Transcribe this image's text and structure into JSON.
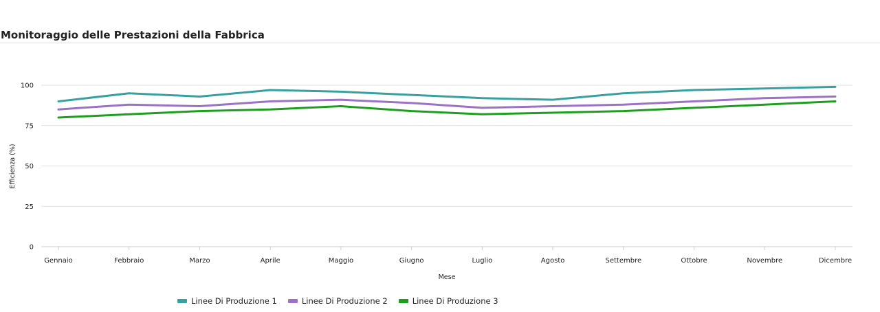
{
  "page": {
    "title": "Monitoraggio delle Prestazioni della Fabbrica"
  },
  "chart_data": {
    "type": "line",
    "title": "",
    "xlabel": "Mese",
    "ylabel": "Efficienza (%)",
    "categories": [
      "Gennaio",
      "Febbraio",
      "Marzo",
      "Aprile",
      "Maggio",
      "Giugno",
      "Luglio",
      "Agosto",
      "Settembre",
      "Ottobre",
      "Novembre",
      "Dicembre"
    ],
    "ylim": [
      0,
      110
    ],
    "yticks": [
      0,
      25,
      50,
      75,
      100
    ],
    "grid": true,
    "legend_position": "bottom",
    "series": [
      {
        "name": "Linee Di Produzione 1",
        "color": "#38a0a0",
        "values": [
          90,
          95,
          93,
          97,
          96,
          94,
          92,
          91,
          95,
          97,
          98,
          99
        ]
      },
      {
        "name": "Linee Di Produzione 2",
        "color": "#9b72c4",
        "values": [
          85,
          88,
          87,
          90,
          91,
          89,
          86,
          87,
          88,
          90,
          92,
          93
        ]
      },
      {
        "name": "Linee Di Produzione 3",
        "color": "#1e9e1e",
        "values": [
          80,
          82,
          84,
          85,
          87,
          84,
          82,
          83,
          84,
          86,
          88,
          90
        ]
      }
    ]
  }
}
